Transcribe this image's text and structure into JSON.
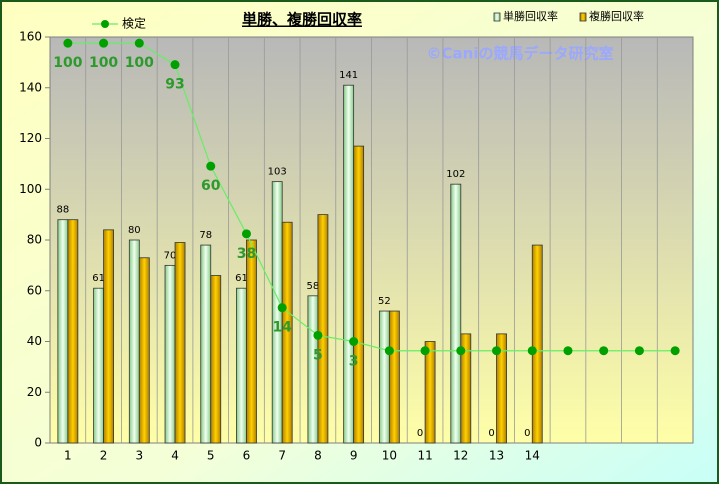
{
  "chart_data": {
    "type": "bar",
    "title": "単勝、複勝回収率",
    "annotation": "©Caniの競馬データ研究室",
    "categories": [
      "1",
      "2",
      "3",
      "4",
      "5",
      "6",
      "7",
      "8",
      "9",
      "10",
      "11",
      "12",
      "13",
      "14",
      null,
      null,
      null,
      null
    ],
    "series": [
      {
        "name": "単勝回収率",
        "color": "#c8f0c8",
        "values": [
          88,
          61,
          80,
          70,
          78,
          61,
          103,
          58,
          141,
          52,
          0,
          102,
          0,
          0,
          null,
          null,
          null,
          null
        ]
      },
      {
        "name": "複勝回収率",
        "color": "#e8b400",
        "values": [
          88,
          84,
          73,
          79,
          66,
          80,
          87,
          90,
          117,
          52,
          40,
          43,
          43,
          78,
          null,
          null,
          null,
          null
        ]
      },
      {
        "name": "検定",
        "type": "line",
        "axis": "y2",
        "color": "#66ee66",
        "marker_color": "#00a000",
        "label_color": "#2e9a2e",
        "values": [
          100,
          100,
          100,
          93,
          60,
          38,
          14,
          5,
          3,
          0,
          0,
          0,
          0,
          0,
          0,
          0,
          0,
          0
        ],
        "value_labels": [
          "100",
          "100",
          "100",
          "93",
          "60",
          "38",
          "14",
          "5",
          "3",
          null,
          null,
          null,
          null,
          null,
          null,
          null,
          null,
          null
        ]
      }
    ],
    "ylim": [
      0,
      160
    ],
    "yticks": [
      0,
      20,
      40,
      60,
      80,
      100,
      120,
      140,
      160
    ],
    "y2lim": [
      -30,
      102
    ],
    "xgrid": true
  }
}
